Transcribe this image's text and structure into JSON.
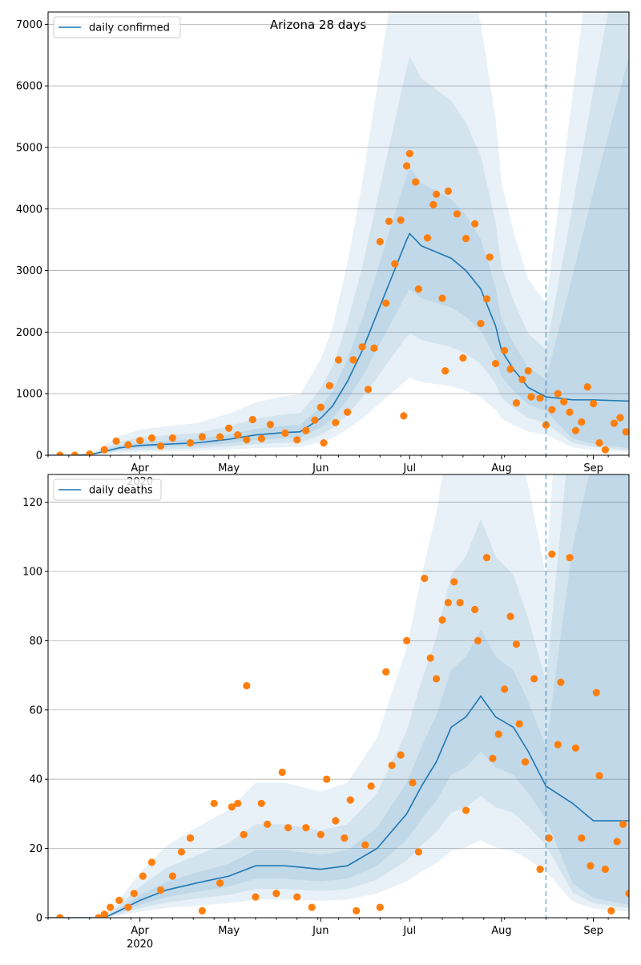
{
  "colors": {
    "line": "#1f77b4",
    "points": "#ff7f0e",
    "band": "#1f77b4",
    "grid": "#b0b0b0",
    "vline": "#1f77b4"
  },
  "chart_data": [
    {
      "type": "line",
      "title": "Arizona 28 days",
      "legend": [
        "daily confirmed"
      ],
      "legend_placement": "top-left",
      "grid": "horizontal",
      "ylim": [
        0,
        7200
      ],
      "yticks": [
        0,
        1000,
        2000,
        3000,
        4000,
        5000,
        6000,
        7000
      ],
      "xlim": [
        "2020-03-01",
        "2020-09-13"
      ],
      "xticks": [
        {
          "date": "2020-04-01",
          "label": "Apr",
          "sublabel": "2020"
        },
        {
          "date": "2020-05-01",
          "label": "May"
        },
        {
          "date": "2020-06-01",
          "label": "Jun"
        },
        {
          "date": "2020-07-01",
          "label": "Jul"
        },
        {
          "date": "2020-08-01",
          "label": "Aug"
        },
        {
          "date": "2020-09-01",
          "label": "Sep"
        }
      ],
      "forecast_start": "2020-08-16",
      "series": [
        {
          "name": "daily confirmed",
          "kind": "line",
          "points": [
            [
              "2020-03-01",
              0
            ],
            [
              "2020-03-10",
              0
            ],
            [
              "2020-03-15",
              10
            ],
            [
              "2020-03-20",
              60
            ],
            [
              "2020-03-25",
              120
            ],
            [
              "2020-04-01",
              160
            ],
            [
              "2020-04-10",
              180
            ],
            [
              "2020-04-20",
              200
            ],
            [
              "2020-05-01",
              260
            ],
            [
              "2020-05-10",
              330
            ],
            [
              "2020-05-20",
              370
            ],
            [
              "2020-05-25",
              380
            ],
            [
              "2020-06-01",
              600
            ],
            [
              "2020-06-05",
              800
            ],
            [
              "2020-06-10",
              1200
            ],
            [
              "2020-06-15",
              1700
            ],
            [
              "2020-06-20",
              2300
            ],
            [
              "2020-06-25",
              2900
            ],
            [
              "2020-06-30",
              3500
            ],
            [
              "2020-07-01",
              3600
            ],
            [
              "2020-07-05",
              3400
            ],
            [
              "2020-07-10",
              3300
            ],
            [
              "2020-07-15",
              3200
            ],
            [
              "2020-07-20",
              3000
            ],
            [
              "2020-07-25",
              2700
            ],
            [
              "2020-07-30",
              2100
            ],
            [
              "2020-08-01",
              1700
            ],
            [
              "2020-08-05",
              1400
            ],
            [
              "2020-08-10",
              1100
            ],
            [
              "2020-08-16",
              950
            ],
            [
              "2020-08-25",
              900
            ],
            [
              "2020-09-01",
              900
            ],
            [
              "2020-09-13",
              880
            ]
          ]
        },
        {
          "name": "",
          "kind": "scatter",
          "points": [
            [
              "2020-03-05",
              0
            ],
            [
              "2020-03-10",
              0
            ],
            [
              "2020-03-15",
              20
            ],
            [
              "2020-03-20",
              90
            ],
            [
              "2020-03-24",
              230
            ],
            [
              "2020-03-28",
              170
            ],
            [
              "2020-04-01",
              240
            ],
            [
              "2020-04-05",
              280
            ],
            [
              "2020-04-08",
              150
            ],
            [
              "2020-04-12",
              280
            ],
            [
              "2020-04-18",
              200
            ],
            [
              "2020-04-22",
              300
            ],
            [
              "2020-04-28",
              300
            ],
            [
              "2020-05-01",
              440
            ],
            [
              "2020-05-04",
              330
            ],
            [
              "2020-05-07",
              250
            ],
            [
              "2020-05-09",
              580
            ],
            [
              "2020-05-12",
              270
            ],
            [
              "2020-05-15",
              500
            ],
            [
              "2020-05-20",
              360
            ],
            [
              "2020-05-24",
              250
            ],
            [
              "2020-05-27",
              400
            ],
            [
              "2020-05-30",
              570
            ],
            [
              "2020-06-01",
              780
            ],
            [
              "2020-06-02",
              200
            ],
            [
              "2020-06-04",
              1130
            ],
            [
              "2020-06-06",
              530
            ],
            [
              "2020-06-07",
              1550
            ],
            [
              "2020-06-10",
              700
            ],
            [
              "2020-06-12",
              1550
            ],
            [
              "2020-06-15",
              1760
            ],
            [
              "2020-06-17",
              1070
            ],
            [
              "2020-06-19",
              1740
            ],
            [
              "2020-06-21",
              3470
            ],
            [
              "2020-06-23",
              2470
            ],
            [
              "2020-06-24",
              3800
            ],
            [
              "2020-06-26",
              3110
            ],
            [
              "2020-06-28",
              3820
            ],
            [
              "2020-06-29",
              640
            ],
            [
              "2020-06-30",
              4700
            ],
            [
              "2020-07-01",
              4900
            ],
            [
              "2020-07-03",
              4440
            ],
            [
              "2020-07-04",
              2700
            ],
            [
              "2020-07-07",
              3530
            ],
            [
              "2020-07-09",
              4070
            ],
            [
              "2020-07-10",
              4240
            ],
            [
              "2020-07-12",
              2550
            ],
            [
              "2020-07-13",
              1370
            ],
            [
              "2020-07-14",
              4290
            ],
            [
              "2020-07-17",
              3920
            ],
            [
              "2020-07-19",
              1580
            ],
            [
              "2020-07-20",
              3520
            ],
            [
              "2020-07-23",
              3760
            ],
            [
              "2020-07-25",
              2140
            ],
            [
              "2020-07-27",
              2540
            ],
            [
              "2020-07-28",
              3220
            ],
            [
              "2020-07-30",
              1490
            ],
            [
              "2020-08-02",
              1700
            ],
            [
              "2020-08-04",
              1400
            ],
            [
              "2020-08-06",
              850
            ],
            [
              "2020-08-08",
              1230
            ],
            [
              "2020-08-10",
              1370
            ],
            [
              "2020-08-11",
              950
            ],
            [
              "2020-08-14",
              930
            ],
            [
              "2020-08-16",
              490
            ],
            [
              "2020-08-18",
              740
            ],
            [
              "2020-08-20",
              1000
            ],
            [
              "2020-08-22",
              870
            ],
            [
              "2020-08-24",
              700
            ],
            [
              "2020-08-26",
              400
            ],
            [
              "2020-08-28",
              540
            ],
            [
              "2020-08-30",
              1110
            ],
            [
              "2020-09-01",
              840
            ],
            [
              "2020-09-03",
              200
            ],
            [
              "2020-09-05",
              90
            ],
            [
              "2020-09-08",
              520
            ],
            [
              "2020-09-10",
              610
            ],
            [
              "2020-09-12",
              380
            ]
          ]
        }
      ]
    },
    {
      "type": "line",
      "legend": [
        "daily deaths"
      ],
      "legend_placement": "top-left",
      "grid": "horizontal",
      "ylim": [
        0,
        128
      ],
      "yticks": [
        0,
        20,
        40,
        60,
        80,
        100,
        120
      ],
      "xlim": [
        "2020-03-01",
        "2020-09-13"
      ],
      "xticks": [
        {
          "date": "2020-04-01",
          "label": "Apr",
          "sublabel": "2020"
        },
        {
          "date": "2020-05-01",
          "label": "May"
        },
        {
          "date": "2020-06-01",
          "label": "Jun"
        },
        {
          "date": "2020-07-01",
          "label": "Jul"
        },
        {
          "date": "2020-08-01",
          "label": "Aug"
        },
        {
          "date": "2020-09-01",
          "label": "Sep"
        }
      ],
      "forecast_start": "2020-08-16",
      "series": [
        {
          "name": "daily deaths",
          "kind": "line",
          "points": [
            [
              "2020-03-01",
              0
            ],
            [
              "2020-03-20",
              0
            ],
            [
              "2020-03-25",
              2
            ],
            [
              "2020-04-01",
              5
            ],
            [
              "2020-04-10",
              8
            ],
            [
              "2020-04-20",
              10
            ],
            [
              "2020-05-01",
              12
            ],
            [
              "2020-05-10",
              15
            ],
            [
              "2020-05-20",
              15
            ],
            [
              "2020-06-01",
              14
            ],
            [
              "2020-06-10",
              15
            ],
            [
              "2020-06-20",
              20
            ],
            [
              "2020-06-30",
              30
            ],
            [
              "2020-07-05",
              38
            ],
            [
              "2020-07-10",
              45
            ],
            [
              "2020-07-15",
              55
            ],
            [
              "2020-07-20",
              58
            ],
            [
              "2020-07-25",
              64
            ],
            [
              "2020-07-30",
              58
            ],
            [
              "2020-08-05",
              55
            ],
            [
              "2020-08-10",
              48
            ],
            [
              "2020-08-16",
              38
            ],
            [
              "2020-08-25",
              33
            ],
            [
              "2020-09-01",
              28
            ],
            [
              "2020-09-13",
              28
            ]
          ]
        },
        {
          "name": "",
          "kind": "scatter",
          "points": [
            [
              "2020-03-05",
              0
            ],
            [
              "2020-03-18",
              0
            ],
            [
              "2020-03-20",
              1
            ],
            [
              "2020-03-22",
              3
            ],
            [
              "2020-03-25",
              5
            ],
            [
              "2020-03-28",
              3
            ],
            [
              "2020-03-30",
              7
            ],
            [
              "2020-04-02",
              12
            ],
            [
              "2020-04-05",
              16
            ],
            [
              "2020-04-08",
              8
            ],
            [
              "2020-04-12",
              12
            ],
            [
              "2020-04-15",
              19
            ],
            [
              "2020-04-18",
              23
            ],
            [
              "2020-04-22",
              2
            ],
            [
              "2020-04-26",
              33
            ],
            [
              "2020-04-28",
              10
            ],
            [
              "2020-05-02",
              32
            ],
            [
              "2020-05-04",
              33
            ],
            [
              "2020-05-06",
              24
            ],
            [
              "2020-05-07",
              67
            ],
            [
              "2020-05-10",
              6
            ],
            [
              "2020-05-12",
              33
            ],
            [
              "2020-05-14",
              27
            ],
            [
              "2020-05-17",
              7
            ],
            [
              "2020-05-19",
              42
            ],
            [
              "2020-05-21",
              26
            ],
            [
              "2020-05-24",
              6
            ],
            [
              "2020-05-27",
              26
            ],
            [
              "2020-05-29",
              3
            ],
            [
              "2020-06-01",
              24
            ],
            [
              "2020-06-03",
              40
            ],
            [
              "2020-06-06",
              28
            ],
            [
              "2020-06-09",
              23
            ],
            [
              "2020-06-11",
              34
            ],
            [
              "2020-06-13",
              2
            ],
            [
              "2020-06-16",
              21
            ],
            [
              "2020-06-18",
              38
            ],
            [
              "2020-06-21",
              3
            ],
            [
              "2020-06-23",
              71
            ],
            [
              "2020-06-25",
              44
            ],
            [
              "2020-06-28",
              47
            ],
            [
              "2020-06-30",
              80
            ],
            [
              "2020-07-02",
              39
            ],
            [
              "2020-07-04",
              19
            ],
            [
              "2020-07-06",
              98
            ],
            [
              "2020-07-08",
              75
            ],
            [
              "2020-07-10",
              69
            ],
            [
              "2020-07-12",
              86
            ],
            [
              "2020-07-14",
              91
            ],
            [
              "2020-07-16",
              97
            ],
            [
              "2020-07-18",
              91
            ],
            [
              "2020-07-20",
              31
            ],
            [
              "2020-07-23",
              89
            ],
            [
              "2020-07-24",
              80
            ],
            [
              "2020-07-27",
              104
            ],
            [
              "2020-07-29",
              46
            ],
            [
              "2020-07-31",
              53
            ],
            [
              "2020-08-02",
              66
            ],
            [
              "2020-08-04",
              87
            ],
            [
              "2020-08-06",
              79
            ],
            [
              "2020-08-07",
              56
            ],
            [
              "2020-08-09",
              45
            ],
            [
              "2020-08-12",
              69
            ],
            [
              "2020-08-14",
              14
            ],
            [
              "2020-08-17",
              23
            ],
            [
              "2020-08-18",
              105
            ],
            [
              "2020-08-20",
              50
            ],
            [
              "2020-08-21",
              68
            ],
            [
              "2020-08-24",
              104
            ],
            [
              "2020-08-26",
              49
            ],
            [
              "2020-08-28",
              23
            ],
            [
              "2020-08-31",
              15
            ],
            [
              "2020-09-02",
              65
            ],
            [
              "2020-09-03",
              41
            ],
            [
              "2020-09-05",
              14
            ],
            [
              "2020-09-07",
              2
            ],
            [
              "2020-09-09",
              22
            ],
            [
              "2020-09-11",
              27
            ],
            [
              "2020-09-13",
              7
            ]
          ]
        }
      ]
    }
  ]
}
